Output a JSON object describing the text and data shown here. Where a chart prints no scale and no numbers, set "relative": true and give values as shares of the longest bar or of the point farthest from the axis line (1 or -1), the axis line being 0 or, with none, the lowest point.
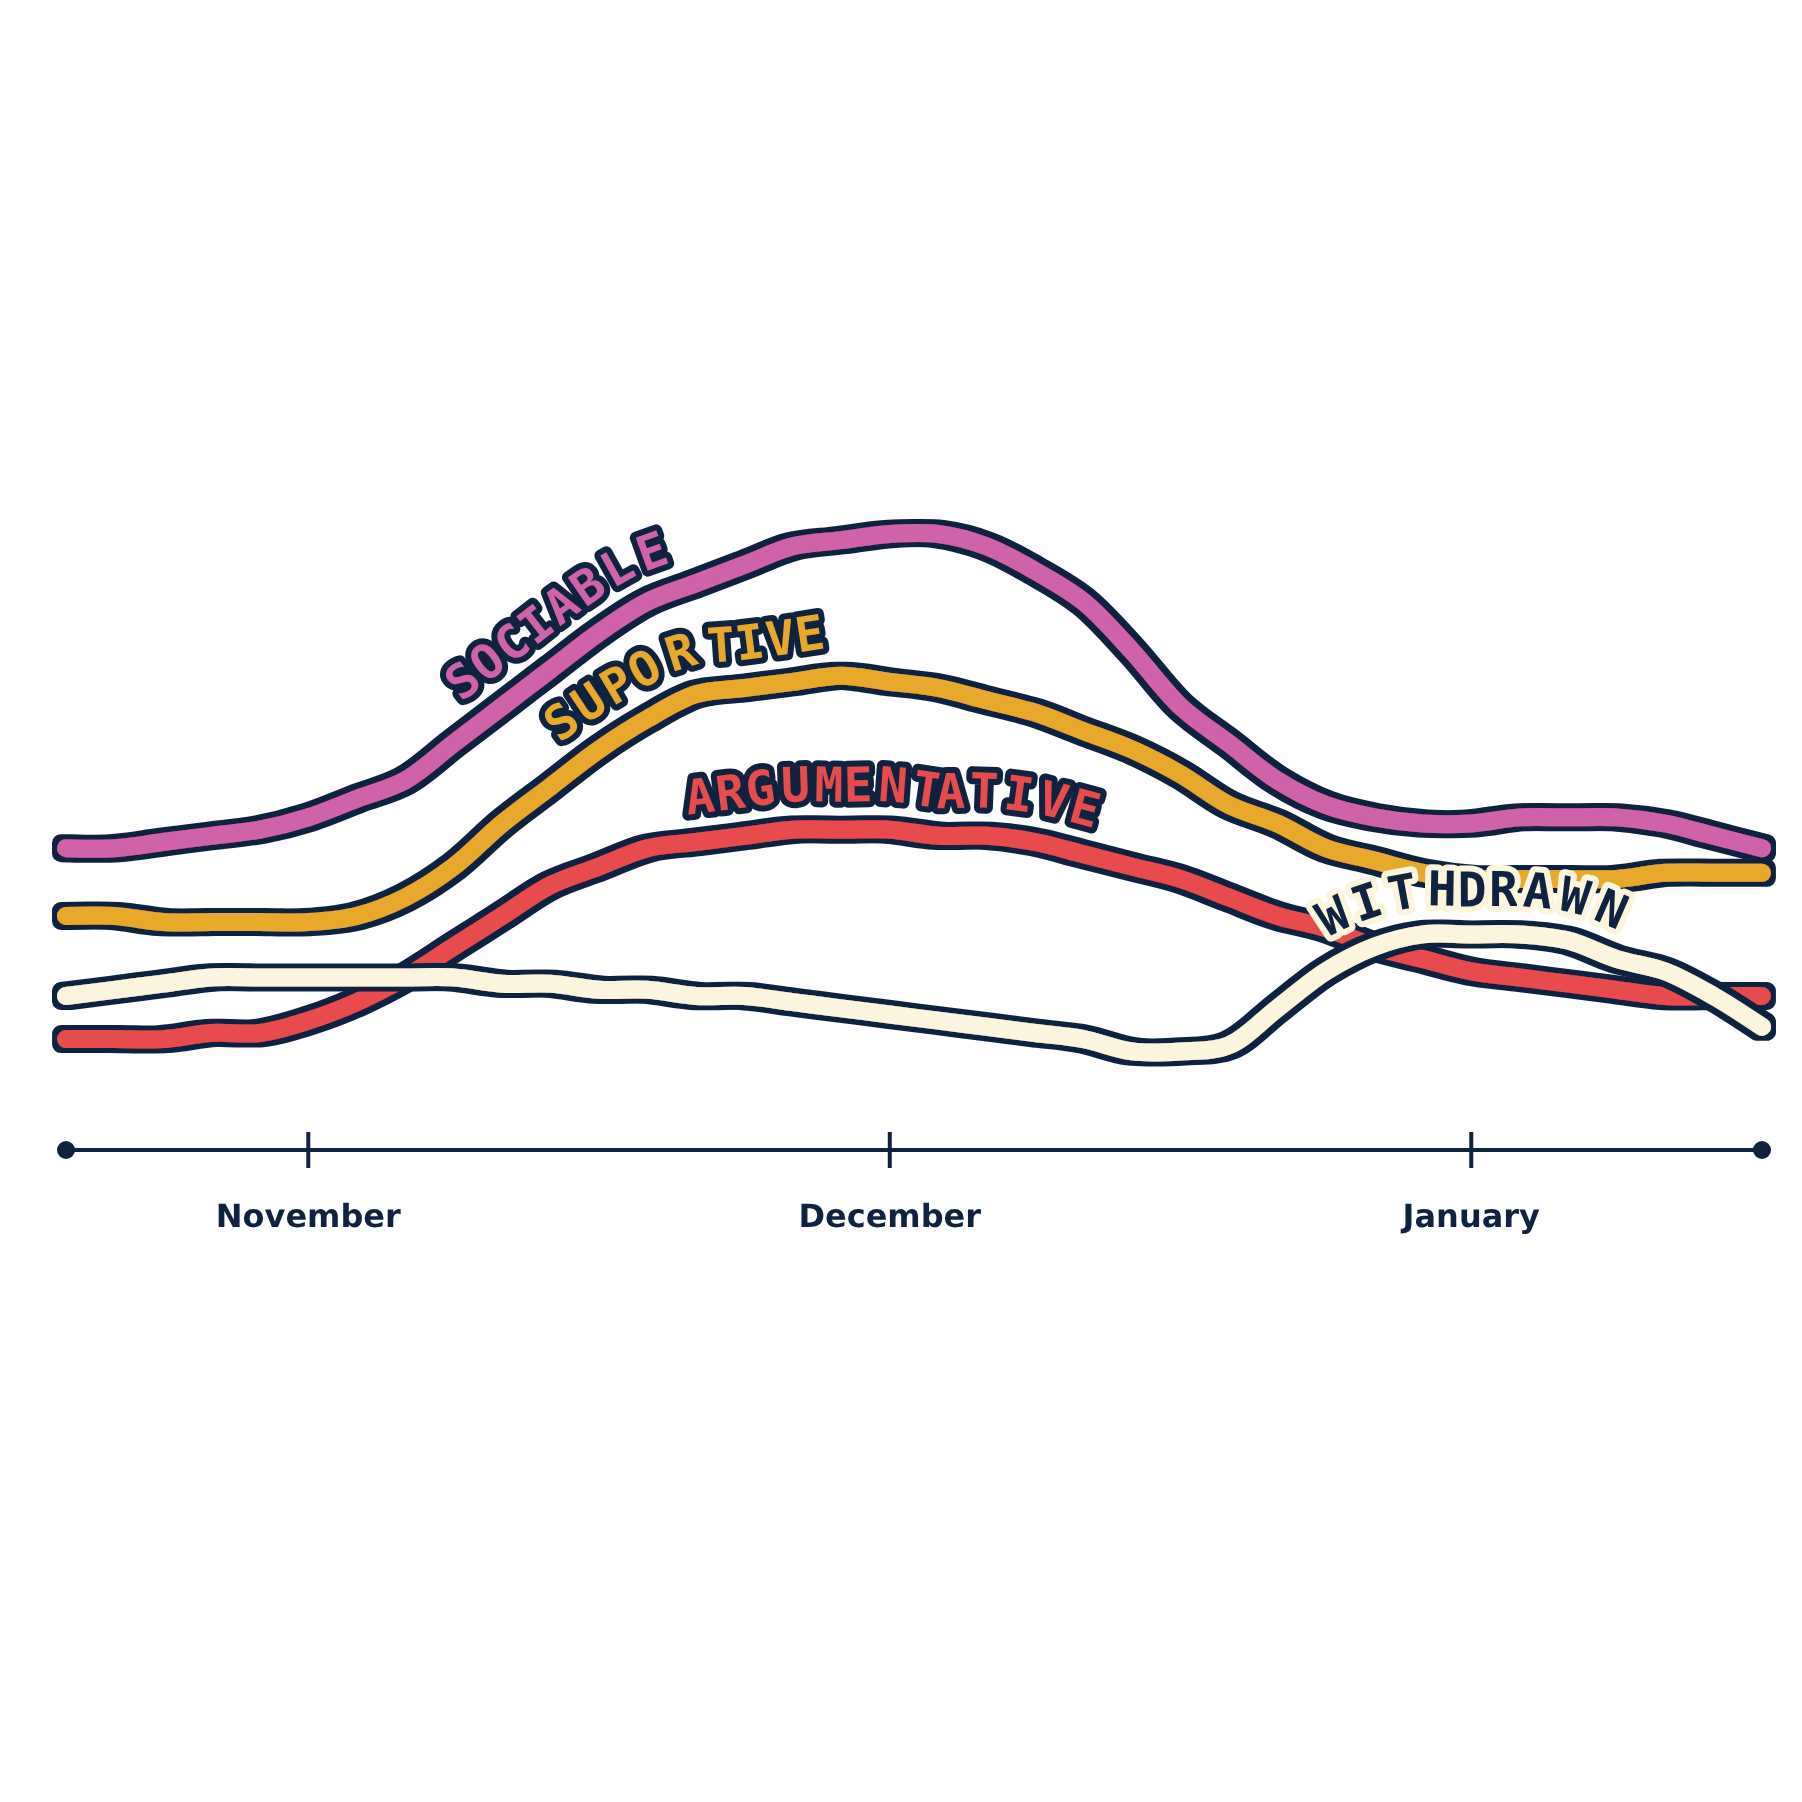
{
  "chart_data": {
    "type": "line",
    "relative": true,
    "categories": [
      null,
      null,
      null,
      null,
      null,
      "November",
      null,
      null,
      null,
      null,
      null,
      null,
      null,
      null,
      null,
      null,
      null,
      "December",
      null,
      null,
      null,
      null,
      null,
      null,
      null,
      null,
      null,
      null,
      null,
      "January",
      null,
      null,
      null,
      null,
      null,
      null
    ],
    "series": [
      {
        "name": "SOCIABLE",
        "color": "#cf62a8",
        "values": [
          0.49,
          0.49,
          0.5,
          0.51,
          0.52,
          0.54,
          0.57,
          0.6,
          0.66,
          0.72,
          0.78,
          0.84,
          0.89,
          0.92,
          0.95,
          0.98,
          0.99,
          1,
          1,
          0.98,
          0.94,
          0.89,
          0.81,
          0.72,
          0.66,
          0.6,
          0.56,
          0.54,
          0.53,
          0.53,
          0.54,
          0.54,
          0.54,
          0.53,
          0.51,
          0.49
        ]
      },
      {
        "name": "SUPORTIVE",
        "color": "#e8a82a",
        "values": [
          0.38,
          0.38,
          0.37,
          0.37,
          0.37,
          0.37,
          0.38,
          0.41,
          0.46,
          0.53,
          0.59,
          0.65,
          0.7,
          0.74,
          0.75,
          0.76,
          0.77,
          0.76,
          0.75,
          0.73,
          0.71,
          0.68,
          0.65,
          0.61,
          0.56,
          0.53,
          0.49,
          0.47,
          0.45,
          0.44,
          0.44,
          0.44,
          0.44,
          0.45,
          0.45,
          0.45
        ]
      },
      {
        "name": "ARGUMENTATIVE",
        "color": "#e84b4b",
        "values": [
          0.18,
          0.18,
          0.18,
          0.19,
          0.19,
          0.21,
          0.24,
          0.28,
          0.33,
          0.38,
          0.43,
          0.46,
          0.49,
          0.5,
          0.51,
          0.52,
          0.52,
          0.52,
          0.51,
          0.51,
          0.5,
          0.48,
          0.46,
          0.44,
          0.41,
          0.38,
          0.36,
          0.33,
          0.31,
          0.29,
          0.28,
          0.27,
          0.26,
          0.25,
          0.25,
          0.25
        ]
      },
      {
        "name": "WITHDRAWN",
        "color": "#fcf5de",
        "values": [
          0.25,
          0.26,
          0.27,
          0.28,
          0.28,
          0.28,
          0.28,
          0.28,
          0.28,
          0.27,
          0.27,
          0.26,
          0.26,
          0.25,
          0.25,
          0.24,
          0.23,
          0.22,
          0.21,
          0.2,
          0.19,
          0.18,
          0.16,
          0.16,
          0.17,
          0.23,
          0.29,
          0.33,
          0.35,
          0.35,
          0.35,
          0.34,
          0.31,
          0.29,
          0.25,
          0.2
        ]
      }
    ]
  }
}
